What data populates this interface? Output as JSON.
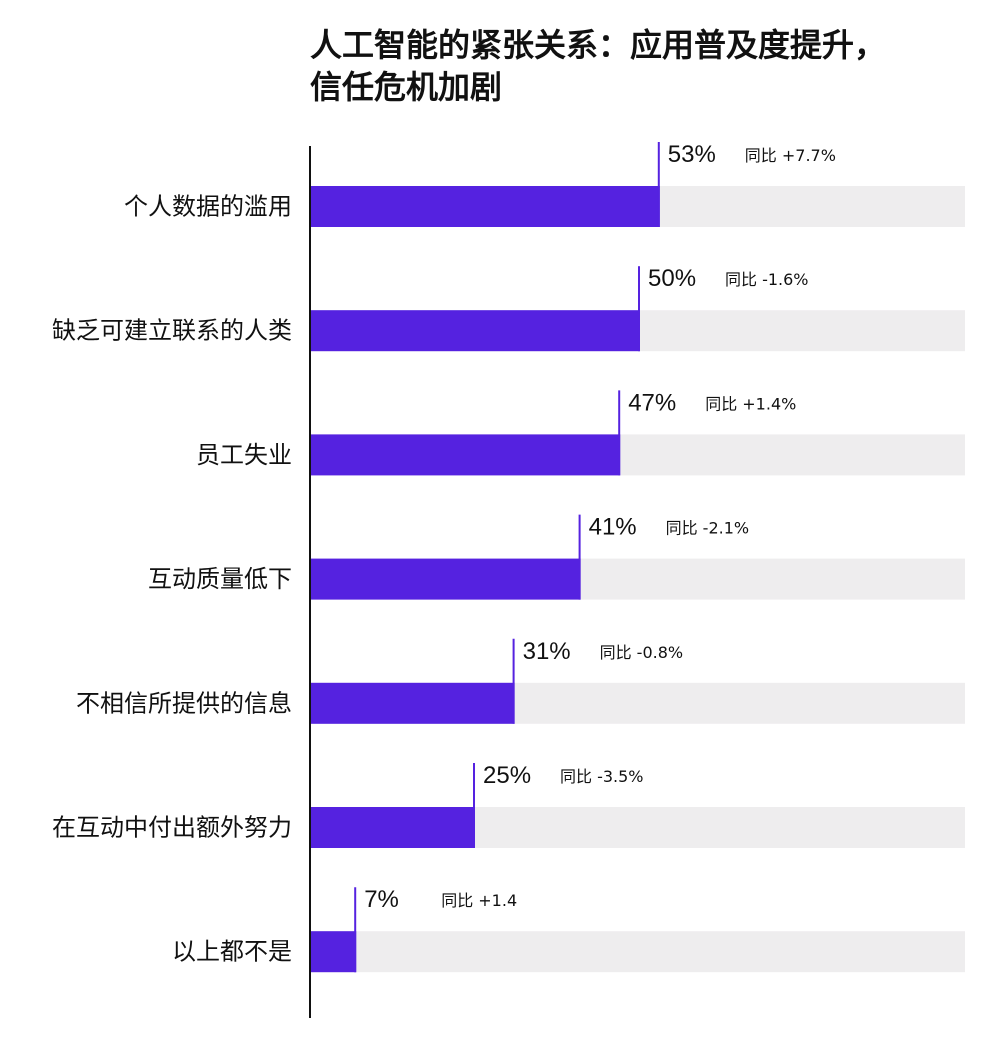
{
  "title_lines": [
    "人工智能的紧张关系：应用普及度提升，",
    "信任危机加剧"
  ],
  "colors": {
    "bar": "#5522E0",
    "track": "#EEEDEE",
    "axis": "#111111",
    "text": "#111111"
  },
  "chart_data": {
    "type": "bar",
    "orientation": "horizontal",
    "title": "人工智能的紧张关系：应用普及度提升，信任危机加剧",
    "xlim": [
      0,
      100
    ],
    "categories": [
      "个人数据的滥用",
      "缺乏可建立联系的人类",
      "员工失业",
      "互动质量低下",
      "不相信所提供的信息",
      "在互动中付出额外努力",
      "以上都不是"
    ],
    "values": [
      53,
      50,
      47,
      41,
      31,
      25,
      7
    ],
    "value_labels": [
      "53%",
      "50%",
      "47%",
      "41%",
      "31%",
      "25%",
      "7%"
    ],
    "change_labels": [
      "同比 +7.7%",
      "同比 -1.6%",
      "同比 +1.4%",
      "同比 -2.1%",
      "同比 -0.8%",
      "同比 -3.5%",
      "同比 +1.4"
    ],
    "grid": false,
    "legend": "none"
  }
}
